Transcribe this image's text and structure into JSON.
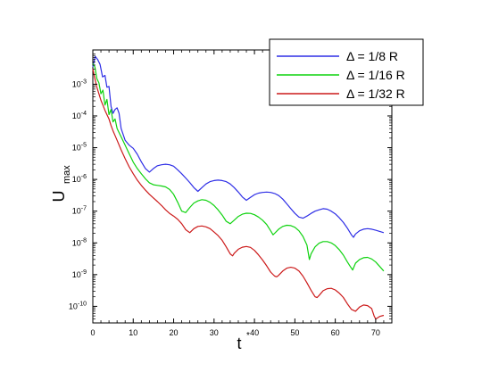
{
  "chart_data": {
    "type": "line",
    "xlabel": "t*",
    "ylabel": "U_max",
    "xlim": [
      0,
      74
    ],
    "ylim": [
      3e-11,
      0.012
    ],
    "yscale": "log",
    "xticks": [
      0,
      10,
      20,
      30,
      40,
      50,
      60,
      70
    ],
    "yticks": [
      {
        "value": 1e-10,
        "exp": "-10"
      },
      {
        "value": 1e-09,
        "exp": "-9"
      },
      {
        "value": 1e-08,
        "exp": "-8"
      },
      {
        "value": 1e-07,
        "exp": "-7"
      },
      {
        "value": 1e-06,
        "exp": "-6"
      },
      {
        "value": 1e-05,
        "exp": "-5"
      },
      {
        "value": 0.0001,
        "exp": "-4"
      },
      {
        "value": 0.001,
        "exp": "-3"
      }
    ],
    "legend_position": "top-right",
    "grid": false,
    "series": [
      {
        "name": "Δ = 1/8 R",
        "color": "#2e2ee6",
        "points": [
          [
            0,
            0.0035
          ],
          [
            0.6,
            0.0075
          ],
          [
            1.2,
            0.006
          ],
          [
            1.8,
            0.0042
          ],
          [
            2.4,
            0.0017
          ],
          [
            3,
            0.0019
          ],
          [
            3.5,
            0.0008
          ],
          [
            4,
            0.00085
          ],
          [
            4.5,
            0.0002
          ],
          [
            5,
            0.00012
          ],
          [
            5.5,
            0.00016
          ],
          [
            6,
            0.00018
          ],
          [
            6.5,
            0.00012
          ],
          [
            7,
            4e-05
          ],
          [
            8,
            1.7e-05
          ],
          [
            9,
            1.2e-05
          ],
          [
            10,
            9.5e-06
          ],
          [
            11,
            6.2e-06
          ],
          [
            12,
            3.6e-06
          ],
          [
            13,
            2.2e-06
          ],
          [
            14,
            1.7e-06
          ],
          [
            15,
            2.2e-06
          ],
          [
            16,
            2.7e-06
          ],
          [
            17,
            2.9e-06
          ],
          [
            18,
            3e-06
          ],
          [
            19,
            2.9e-06
          ],
          [
            20,
            2.6e-06
          ],
          [
            21,
            2e-06
          ],
          [
            22,
            1.5e-06
          ],
          [
            23,
            1.1e-06
          ],
          [
            24,
            8e-07
          ],
          [
            25,
            5.5e-07
          ],
          [
            26,
            4.2e-07
          ],
          [
            27,
            5.5e-07
          ],
          [
            28,
            7.2e-07
          ],
          [
            29,
            8.5e-07
          ],
          [
            30,
            9.2e-07
          ],
          [
            31,
            9.5e-07
          ],
          [
            32,
            9.2e-07
          ],
          [
            33,
            8.5e-07
          ],
          [
            34,
            7.2e-07
          ],
          [
            35,
            5.5e-07
          ],
          [
            36,
            4e-07
          ],
          [
            37,
            2.8e-07
          ],
          [
            38,
            2.2e-07
          ],
          [
            39,
            2.7e-07
          ],
          [
            40,
            3.3e-07
          ],
          [
            41,
            3.7e-07
          ],
          [
            42,
            3.9e-07
          ],
          [
            43,
            4e-07
          ],
          [
            44,
            3.9e-07
          ],
          [
            45,
            3.6e-07
          ],
          [
            46,
            3.1e-07
          ],
          [
            47,
            2.4e-07
          ],
          [
            48,
            1.7e-07
          ],
          [
            49,
            1.2e-07
          ],
          [
            50,
            8.5e-08
          ],
          [
            51,
            6.5e-08
          ],
          [
            52,
            6e-08
          ],
          [
            53,
            7e-08
          ],
          [
            54,
            8.5e-08
          ],
          [
            55,
            1e-07
          ],
          [
            56,
            1.1e-07
          ],
          [
            57,
            1.2e-07
          ],
          [
            58,
            1.15e-07
          ],
          [
            59,
            1e-07
          ],
          [
            60,
            8.2e-08
          ],
          [
            61,
            6.2e-08
          ],
          [
            62,
            4.4e-08
          ],
          [
            63,
            2.9e-08
          ],
          [
            64,
            1.8e-08
          ],
          [
            64.5,
            1.5e-08
          ],
          [
            65,
            1.9e-08
          ],
          [
            66,
            2.4e-08
          ],
          [
            67,
            2.7e-08
          ],
          [
            68,
            2.8e-08
          ],
          [
            69,
            2.7e-08
          ],
          [
            70,
            2.5e-08
          ],
          [
            71,
            2.3e-08
          ],
          [
            72,
            2.1e-08
          ]
        ]
      },
      {
        "name": "Δ = 1/16 R",
        "color": "#0fd30f",
        "points": [
          [
            0,
            0.0045
          ],
          [
            0.5,
            0.0035
          ],
          [
            1,
            0.0015
          ],
          [
            1.5,
            0.0011
          ],
          [
            2,
            0.0005
          ],
          [
            2.5,
            0.00065
          ],
          [
            3,
            0.00022
          ],
          [
            3.5,
            0.00033
          ],
          [
            4,
            0.00011
          ],
          [
            4.5,
            0.00016
          ],
          [
            5,
            6.5e-05
          ],
          [
            5.5,
            8e-05
          ],
          [
            6,
            4e-05
          ],
          [
            7,
            2.2e-05
          ],
          [
            8,
            1.2e-05
          ],
          [
            9,
            6.5e-06
          ],
          [
            10,
            3.5e-06
          ],
          [
            11,
            2.2e-06
          ],
          [
            12,
            1.5e-06
          ],
          [
            13,
            1.05e-06
          ],
          [
            14,
            7.8e-07
          ],
          [
            15,
            6.8e-07
          ],
          [
            16,
            6.5e-07
          ],
          [
            17,
            6.2e-07
          ],
          [
            18,
            5.8e-07
          ],
          [
            19,
            4.8e-07
          ],
          [
            20,
            3.4e-07
          ],
          [
            21,
            1.9e-07
          ],
          [
            22,
            1e-07
          ],
          [
            23,
            9e-08
          ],
          [
            24,
            1.3e-07
          ],
          [
            25,
            1.8e-07
          ],
          [
            26,
            2.1e-07
          ],
          [
            27,
            2.3e-07
          ],
          [
            28,
            2.2e-07
          ],
          [
            29,
            1.9e-07
          ],
          [
            30,
            1.5e-07
          ],
          [
            31,
            1.1e-07
          ],
          [
            32,
            7.5e-08
          ],
          [
            33,
            4.8e-08
          ],
          [
            34,
            4e-08
          ],
          [
            35,
            5.2e-08
          ],
          [
            36,
            6.8e-08
          ],
          [
            37,
            8e-08
          ],
          [
            38,
            8.6e-08
          ],
          [
            39,
            8.5e-08
          ],
          [
            40,
            7.7e-08
          ],
          [
            41,
            6.5e-08
          ],
          [
            42,
            5.2e-08
          ],
          [
            43,
            3.8e-08
          ],
          [
            44,
            2.4e-08
          ],
          [
            44.6,
            1.8e-08
          ],
          [
            45,
            2e-08
          ],
          [
            46,
            2.7e-08
          ],
          [
            47,
            3.3e-08
          ],
          [
            48,
            3.6e-08
          ],
          [
            49,
            3.5e-08
          ],
          [
            50,
            3.1e-08
          ],
          [
            51,
            2.4e-08
          ],
          [
            52,
            1.6e-08
          ],
          [
            53,
            8.5e-09
          ],
          [
            53.6,
            3e-09
          ],
          [
            54,
            4.5e-09
          ],
          [
            55,
            7.5e-09
          ],
          [
            56,
            9.8e-09
          ],
          [
            57,
            1.1e-08
          ],
          [
            58,
            1.1e-08
          ],
          [
            59,
            1e-08
          ],
          [
            60,
            8.2e-09
          ],
          [
            61,
            6.1e-09
          ],
          [
            62,
            4.1e-09
          ],
          [
            63,
            2.5e-09
          ],
          [
            63.7,
            1.8e-09
          ],
          [
            64.3,
            1.4e-09
          ],
          [
            65,
            2.3e-09
          ],
          [
            66,
            3e-09
          ],
          [
            67,
            3.4e-09
          ],
          [
            68,
            3.5e-09
          ],
          [
            69,
            3.1e-09
          ],
          [
            70,
            2.5e-09
          ],
          [
            71,
            1.8e-09
          ],
          [
            72,
            1.3e-09
          ]
        ]
      },
      {
        "name": "Δ = 1/32 R",
        "color": "#cc1a1a",
        "points": [
          [
            0,
            0.003
          ],
          [
            0.5,
            0.0015
          ],
          [
            1,
            0.0008
          ],
          [
            1.5,
            0.0005
          ],
          [
            2,
            0.00031
          ],
          [
            2.5,
            0.00022
          ],
          [
            3,
            0.00015
          ],
          [
            3.5,
            0.00011
          ],
          [
            4,
            8e-05
          ],
          [
            4.5,
            5e-05
          ],
          [
            5,
            3.4e-05
          ],
          [
            6,
            1.7e-05
          ],
          [
            7,
            8.5e-06
          ],
          [
            8,
            4.5e-06
          ],
          [
            9,
            2.5e-06
          ],
          [
            10,
            1.5e-06
          ],
          [
            11,
            9.5e-07
          ],
          [
            12,
            6.5e-07
          ],
          [
            13,
            4.6e-07
          ],
          [
            14,
            3.4e-07
          ],
          [
            15,
            2.6e-07
          ],
          [
            16,
            2e-07
          ],
          [
            17,
            1.5e-07
          ],
          [
            18,
            1.1e-07
          ],
          [
            19,
            8.5e-08
          ],
          [
            20,
            7e-08
          ],
          [
            21,
            5.5e-08
          ],
          [
            22,
            4e-08
          ],
          [
            23,
            2.6e-08
          ],
          [
            24,
            2.1e-08
          ],
          [
            25,
            2.8e-08
          ],
          [
            26,
            3.3e-08
          ],
          [
            27,
            3.4e-08
          ],
          [
            28,
            3.2e-08
          ],
          [
            29,
            2.8e-08
          ],
          [
            30,
            2.2e-08
          ],
          [
            31,
            1.7e-08
          ],
          [
            32,
            1.2e-08
          ],
          [
            33,
            7.5e-09
          ],
          [
            34,
            4.5e-09
          ],
          [
            34.6,
            3.9e-09
          ],
          [
            35,
            4.7e-09
          ],
          [
            36,
            6.3e-09
          ],
          [
            37,
            7.3e-09
          ],
          [
            38,
            7.7e-09
          ],
          [
            39,
            7.2e-09
          ],
          [
            40,
            5.8e-09
          ],
          [
            41,
            4.2e-09
          ],
          [
            42,
            2.9e-09
          ],
          [
            43,
            1.9e-09
          ],
          [
            44,
            1.2e-09
          ],
          [
            45,
            9e-10
          ],
          [
            45.5,
            8.5e-10
          ],
          [
            46,
            9.5e-10
          ],
          [
            47,
            1.3e-09
          ],
          [
            48,
            1.6e-09
          ],
          [
            49,
            1.7e-09
          ],
          [
            50,
            1.6e-09
          ],
          [
            51,
            1.3e-09
          ],
          [
            52,
            9e-10
          ],
          [
            53,
            5.5e-10
          ],
          [
            54,
            3.2e-10
          ],
          [
            55,
            2e-10
          ],
          [
            55.5,
            1.9e-10
          ],
          [
            56,
            2.2e-10
          ],
          [
            57,
            3.1e-10
          ],
          [
            58,
            3.6e-10
          ],
          [
            59,
            3.7e-10
          ],
          [
            60,
            3.3e-10
          ],
          [
            61,
            2.6e-10
          ],
          [
            62,
            1.9e-10
          ],
          [
            63,
            1.2e-10
          ],
          [
            64,
            8e-11
          ],
          [
            65,
            7e-11
          ],
          [
            66,
            9.5e-11
          ],
          [
            67,
            1.1e-10
          ],
          [
            68,
            1.05e-10
          ],
          [
            69,
            8.5e-11
          ],
          [
            69.6,
            5e-11
          ],
          [
            70,
            4e-11
          ],
          [
            71,
            4.8e-11
          ],
          [
            72,
            5.2e-11
          ]
        ]
      }
    ]
  }
}
